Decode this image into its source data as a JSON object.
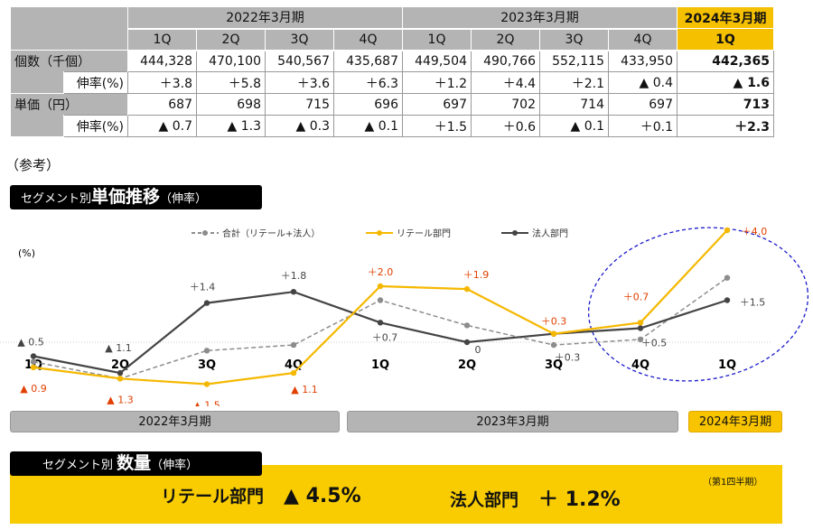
{
  "table": {
    "periods": [
      "2022年3月期",
      "2023年3月期",
      "2024年3月期"
    ],
    "quarters": [
      "1Q",
      "2Q",
      "3Q",
      "4Q",
      "1Q",
      "2Q",
      "3Q",
      "4Q",
      "1Q"
    ],
    "rows": [
      {
        "label": "個数（千個）",
        "values": [
          "444,328",
          "470,100",
          "540,567",
          "435,687",
          "449,504",
          "490,766",
          "552,115",
          "433,950",
          "442,365"
        ]
      },
      {
        "label": "伸率(%)",
        "values": [
          "＋3.8",
          "＋5.8",
          "＋3.6",
          "＋6.3",
          "＋1.2",
          "＋4.4",
          "＋2.1",
          "▲ 0.4",
          "▲ 1.6"
        ]
      },
      {
        "label": "単価（円）",
        "values": [
          "687",
          "698",
          "715",
          "696",
          "697",
          "702",
          "714",
          "697",
          "713"
        ]
      },
      {
        "label": "伸率(%)",
        "values": [
          "▲ 0.7",
          "▲ 1.3",
          "▲ 0.3",
          "▲ 0.1",
          "＋1.5",
          "＋0.6",
          "▲ 0.1",
          "＋0.1",
          "＋2.3"
        ]
      }
    ]
  },
  "note": "（参考）",
  "price_title": {
    "prefix": "セグメント別",
    "main": "単価推移",
    "suffix": "（伸率）"
  },
  "chart_data": {
    "type": "line",
    "title": "セグメント別単価推移（伸率）",
    "ylabel": "(%)",
    "categories": [
      "1Q",
      "2Q",
      "3Q",
      "4Q",
      "1Q",
      "2Q",
      "3Q",
      "4Q",
      "1Q"
    ],
    "periods": [
      "2022年3月期",
      "2023年3月期",
      "2024年3月期"
    ],
    "series": [
      {
        "name": "合計（リテール+法人）",
        "color": "#8c8c8c",
        "style": "dashed",
        "labeled": false,
        "values": [
          -0.7,
          -1.3,
          -0.3,
          -0.1,
          1.5,
          0.6,
          -0.1,
          0.1,
          2.3
        ]
      },
      {
        "name": "リテール部門",
        "color": "#f5b800",
        "label_color": "#e04000",
        "style": "solid",
        "labeled": true,
        "values": [
          -0.9,
          -1.3,
          -1.5,
          -1.1,
          2.0,
          1.9,
          0.3,
          0.7,
          4.0
        ]
      },
      {
        "name": "法人部門",
        "color": "#444444",
        "label_color": "#444444",
        "style": "solid",
        "labeled": true,
        "values": [
          -0.5,
          -1.1,
          1.4,
          1.8,
          0.7,
          0,
          0.3,
          0.5,
          1.5
        ]
      }
    ],
    "legend": "top",
    "highlight_color": "#1a1acc"
  },
  "volume": {
    "title_prefix": "セグメント別",
    "title_main": "数量",
    "title_suffix": "（伸率）",
    "note": "（第1四半期）",
    "retail_label": "リテール部門",
    "retail_value": "▲ 4.5%",
    "corp_label": "法人部門",
    "corp_value": "＋ 1.2%"
  }
}
